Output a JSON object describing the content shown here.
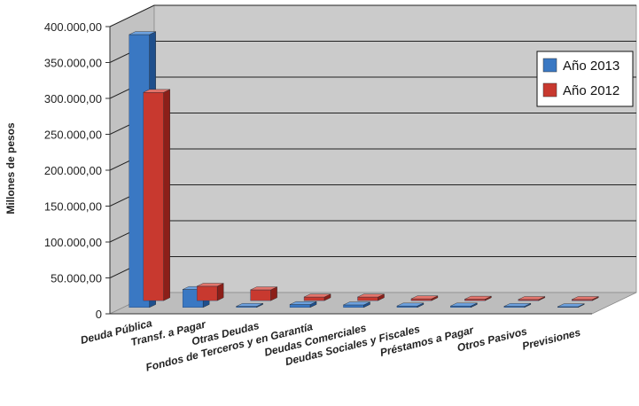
{
  "chart_data": {
    "type": "bar",
    "title": "",
    "xlabel": "",
    "ylabel": "Millones de pesos",
    "ylim": [
      0,
      400000
    ],
    "yticks": [
      "0",
      "50.000,00",
      "100.000,00",
      "150.000,00",
      "200.000,00",
      "250.000,00",
      "300.000,00",
      "350.000,00",
      "400.000,00"
    ],
    "categories": [
      "Deuda Pública",
      "Transf. a Pagar",
      "Otras Deudas",
      "Fondos de Terceros y en Garantía",
      "Deudas Comerciales",
      "Deudas Sociales y Fiscales",
      "Préstamos a Pagar",
      "Otros Pasivos",
      "Previsiones"
    ],
    "series": [
      {
        "name": "Año 2013",
        "color": "#3a78c3",
        "values": [
          380000,
          25000,
          1500,
          4000,
          3500,
          2000,
          2000,
          1500,
          1000
        ]
      },
      {
        "name": "Año 2012",
        "color": "#c8392f",
        "values": [
          290000,
          20000,
          15000,
          5000,
          5000,
          2500,
          2000,
          1500,
          1500
        ]
      }
    ],
    "grid": true,
    "legend_position": "top-right",
    "style": "3d-clustered-column"
  }
}
